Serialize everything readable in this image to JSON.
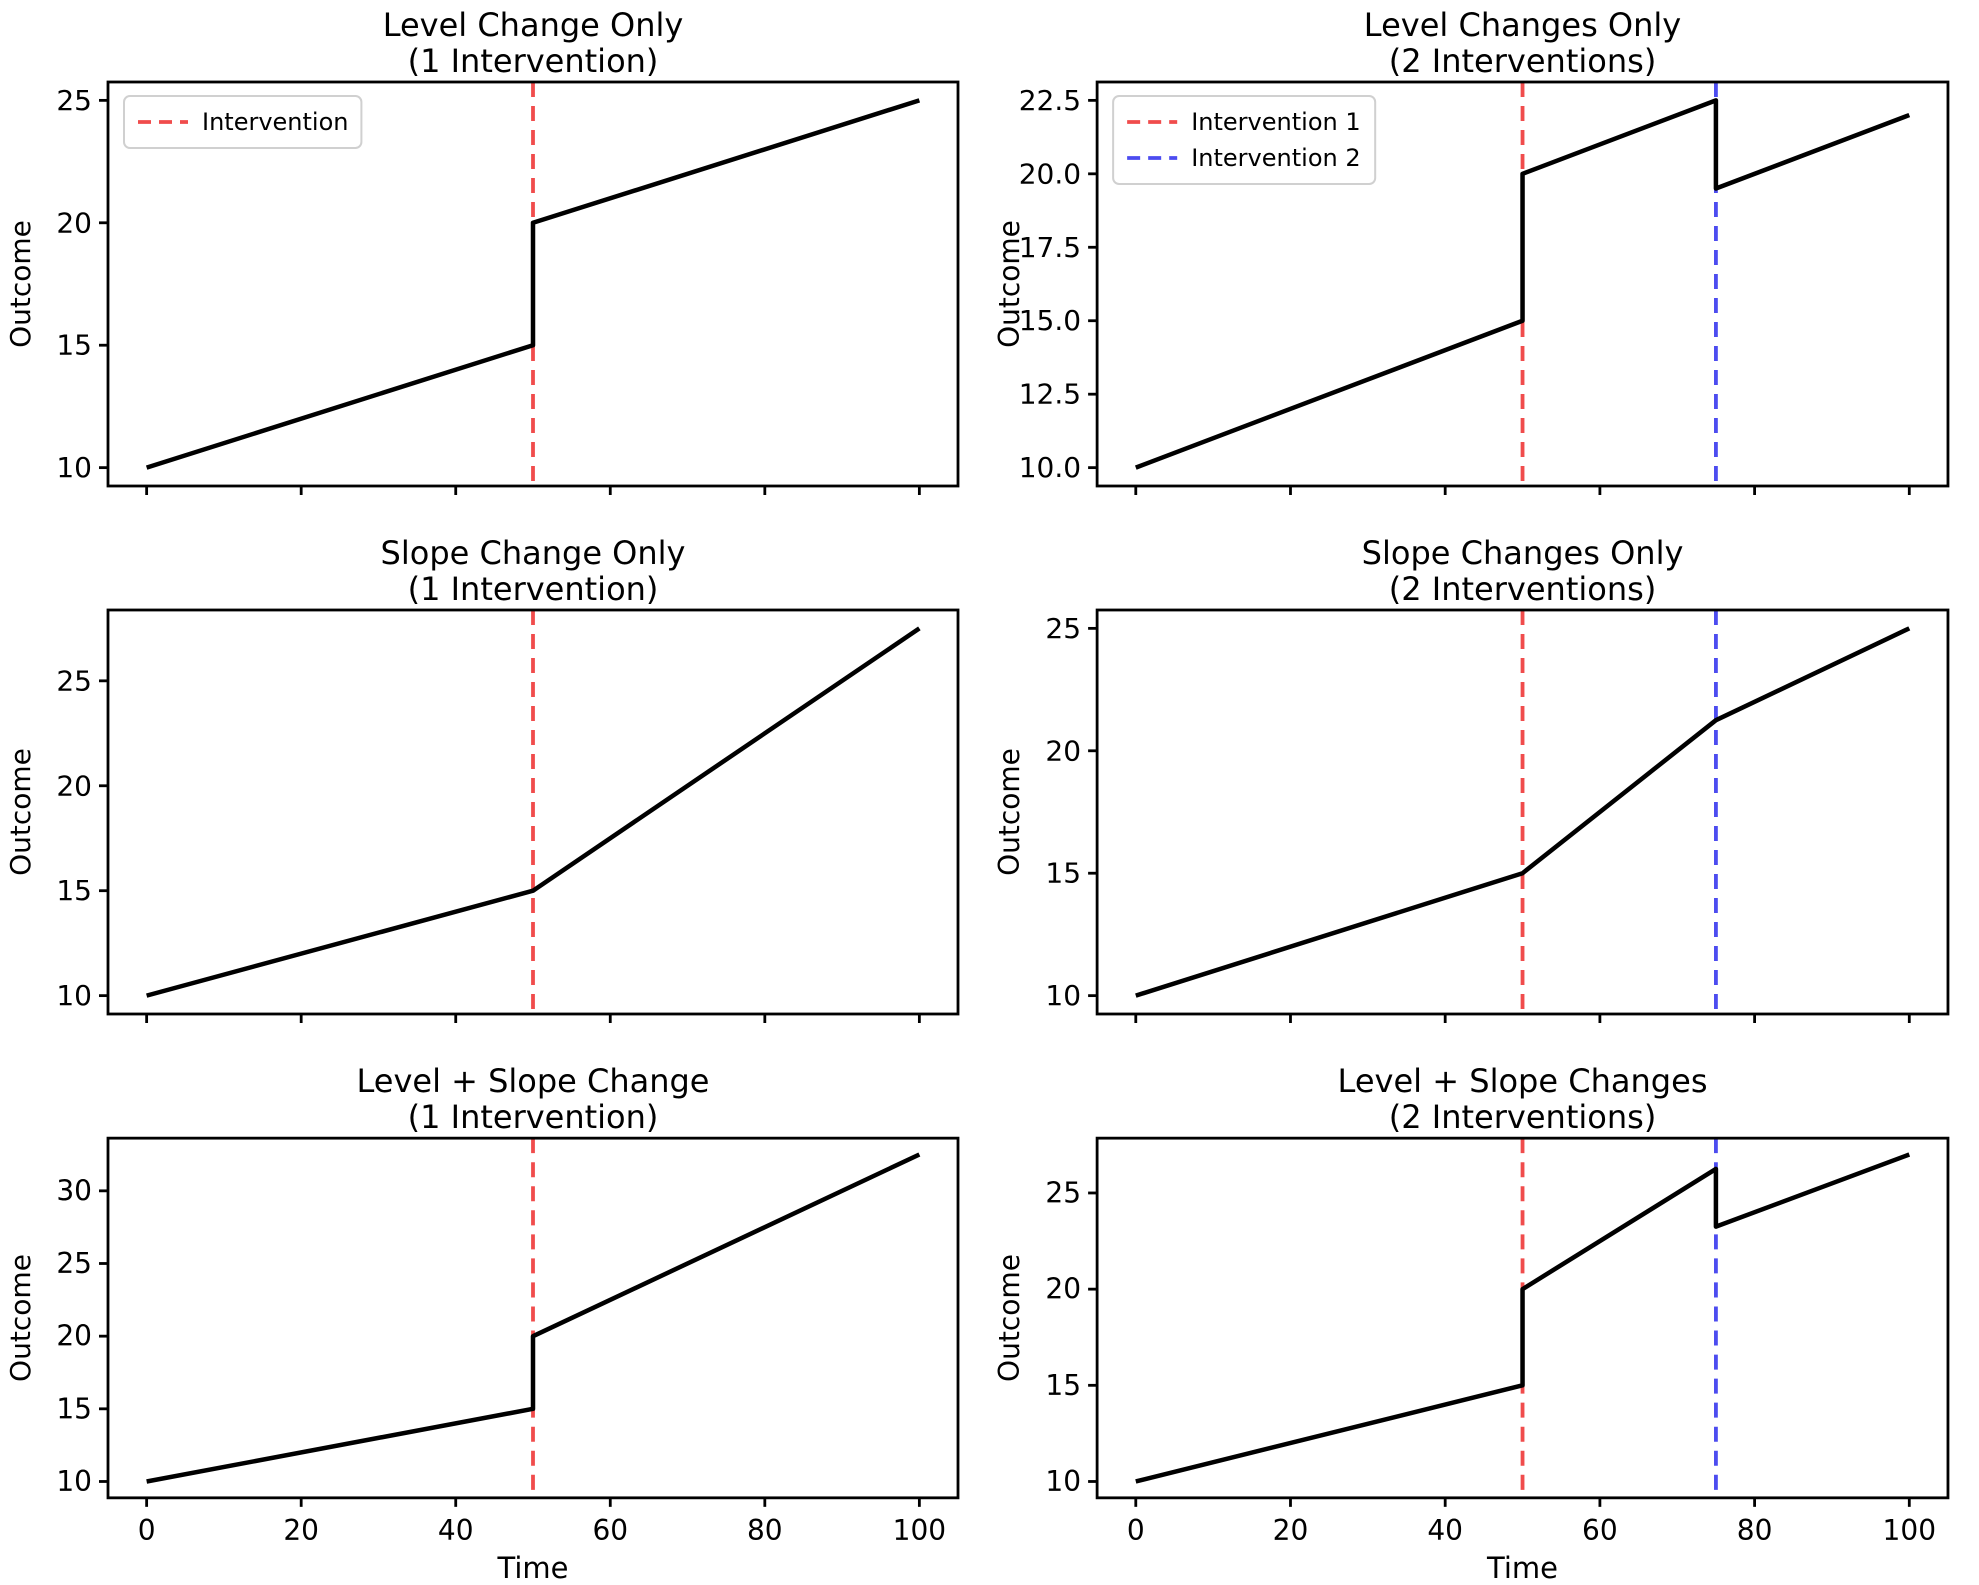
{
  "figure": {
    "background": "#ffffff",
    "text_color": "#000000",
    "series_color": "#000000",
    "accent_colors": {
      "intervention_1": "#f04c4c",
      "intervention_2": "#4c4cf0"
    }
  },
  "chart_data": [
    {
      "id": "level-change-1-intervention",
      "type": "line",
      "title": [
        "Level Change Only",
        "(1 Intervention)"
      ],
      "xlabel": "",
      "ylabel": "Outcome",
      "xlim": [
        -5,
        105
      ],
      "ylim": [
        9.25,
        25.75
      ],
      "x_ticks": [
        0,
        20,
        40,
        60,
        80,
        100
      ],
      "x_tick_labels": [
        "0",
        "20",
        "40",
        "60",
        "80",
        "100"
      ],
      "show_x_tick_labels": false,
      "y_ticks": [
        10,
        15,
        20,
        25
      ],
      "y_tick_labels": [
        "10",
        "15",
        "20",
        "25"
      ],
      "series": {
        "name": "Outcome",
        "x": [
          0,
          50,
          50,
          100
        ],
        "y": [
          10,
          15,
          20,
          25
        ]
      },
      "interventions": [
        {
          "x": 50,
          "color": "#f04c4c",
          "label": "Intervention"
        }
      ],
      "legend": {
        "position": "upper-left",
        "items": [
          {
            "label": "Intervention",
            "color": "#f04c4c"
          }
        ]
      }
    },
    {
      "id": "level-changes-2-interventions",
      "type": "line",
      "title": [
        "Level Changes Only",
        "(2 Interventions)"
      ],
      "xlabel": "",
      "ylabel": "Outcome",
      "xlim": [
        -5,
        105
      ],
      "ylim": [
        9.375,
        23.125
      ],
      "x_ticks": [
        0,
        20,
        40,
        60,
        80,
        100
      ],
      "x_tick_labels": [
        "0",
        "20",
        "40",
        "60",
        "80",
        "100"
      ],
      "show_x_tick_labels": false,
      "y_ticks": [
        10,
        12.5,
        15,
        17.5,
        20,
        22.5
      ],
      "y_tick_labels": [
        "10.0",
        "12.5",
        "15.0",
        "17.5",
        "20.0",
        "22.5"
      ],
      "series": {
        "name": "Outcome",
        "x": [
          0,
          50,
          50,
          75,
          75,
          100
        ],
        "y": [
          10,
          15,
          20,
          22.5,
          19.5,
          22
        ]
      },
      "interventions": [
        {
          "x": 50,
          "color": "#f04c4c",
          "label": "Intervention 1"
        },
        {
          "x": 75,
          "color": "#4c4cf0",
          "label": "Intervention 2"
        }
      ],
      "legend": {
        "position": "upper-left",
        "items": [
          {
            "label": "Intervention 1",
            "color": "#f04c4c"
          },
          {
            "label": "Intervention 2",
            "color": "#4c4cf0"
          }
        ]
      }
    },
    {
      "id": "slope-change-1-intervention",
      "type": "line",
      "title": [
        "Slope Change Only",
        "(1 Intervention)"
      ],
      "xlabel": "",
      "ylabel": "Outcome",
      "xlim": [
        -5,
        105
      ],
      "ylim": [
        9.125,
        28.375
      ],
      "x_ticks": [
        0,
        20,
        40,
        60,
        80,
        100
      ],
      "x_tick_labels": [
        "0",
        "20",
        "40",
        "60",
        "80",
        "100"
      ],
      "show_x_tick_labels": false,
      "y_ticks": [
        10,
        15,
        20,
        25
      ],
      "y_tick_labels": [
        "10",
        "15",
        "20",
        "25"
      ],
      "series": {
        "name": "Outcome",
        "x": [
          0,
          50,
          100
        ],
        "y": [
          10,
          15,
          27.5
        ]
      },
      "interventions": [
        {
          "x": 50,
          "color": "#f04c4c",
          "label": "Intervention"
        }
      ],
      "legend": null
    },
    {
      "id": "slope-changes-2-interventions",
      "type": "line",
      "title": [
        "Slope Changes Only",
        "(2 Interventions)"
      ],
      "xlabel": "",
      "ylabel": "Outcome",
      "xlim": [
        -5,
        105
      ],
      "ylim": [
        9.25,
        25.75
      ],
      "x_ticks": [
        0,
        20,
        40,
        60,
        80,
        100
      ],
      "x_tick_labels": [
        "0",
        "20",
        "40",
        "60",
        "80",
        "100"
      ],
      "show_x_tick_labels": false,
      "y_ticks": [
        10,
        15,
        20,
        25
      ],
      "y_tick_labels": [
        "10",
        "15",
        "20",
        "25"
      ],
      "series": {
        "name": "Outcome",
        "x": [
          0,
          50,
          75,
          100
        ],
        "y": [
          10,
          15,
          21.25,
          25
        ]
      },
      "interventions": [
        {
          "x": 50,
          "color": "#f04c4c",
          "label": "Intervention 1"
        },
        {
          "x": 75,
          "color": "#4c4cf0",
          "label": "Intervention 2"
        }
      ],
      "legend": null
    },
    {
      "id": "level-plus-slope-change-1-intervention",
      "type": "line",
      "title": [
        "Level + Slope Change",
        "(1 Intervention)"
      ],
      "xlabel": "Time",
      "ylabel": "Outcome",
      "xlim": [
        -5,
        105
      ],
      "ylim": [
        8.875,
        33.625
      ],
      "x_ticks": [
        0,
        20,
        40,
        60,
        80,
        100
      ],
      "x_tick_labels": [
        "0",
        "20",
        "40",
        "60",
        "80",
        "100"
      ],
      "show_x_tick_labels": true,
      "y_ticks": [
        10,
        15,
        20,
        25,
        30
      ],
      "y_tick_labels": [
        "10",
        "15",
        "20",
        "25",
        "30"
      ],
      "series": {
        "name": "Outcome",
        "x": [
          0,
          50,
          50,
          100
        ],
        "y": [
          10,
          15,
          20,
          32.5
        ]
      },
      "interventions": [
        {
          "x": 50,
          "color": "#f04c4c",
          "label": "Intervention"
        }
      ],
      "legend": null
    },
    {
      "id": "level-plus-slope-changes-2-interventions",
      "type": "line",
      "title": [
        "Level + Slope Changes",
        "(2 Interventions)"
      ],
      "xlabel": "Time",
      "ylabel": "Outcome",
      "xlim": [
        -5,
        105
      ],
      "ylim": [
        9.15,
        27.85
      ],
      "x_ticks": [
        0,
        20,
        40,
        60,
        80,
        100
      ],
      "x_tick_labels": [
        "0",
        "20",
        "40",
        "60",
        "80",
        "100"
      ],
      "show_x_tick_labels": true,
      "y_ticks": [
        10,
        15,
        20,
        25
      ],
      "y_tick_labels": [
        "10",
        "15",
        "20",
        "25"
      ],
      "series": {
        "name": "Outcome",
        "x": [
          0,
          50,
          50,
          75,
          75,
          100
        ],
        "y": [
          10,
          15,
          20,
          26.25,
          23.25,
          27
        ]
      },
      "interventions": [
        {
          "x": 50,
          "color": "#f04c4c",
          "label": "Intervention 1"
        },
        {
          "x": 75,
          "color": "#4c4cf0",
          "label": "Intervention 2"
        }
      ],
      "legend": null
    }
  ]
}
